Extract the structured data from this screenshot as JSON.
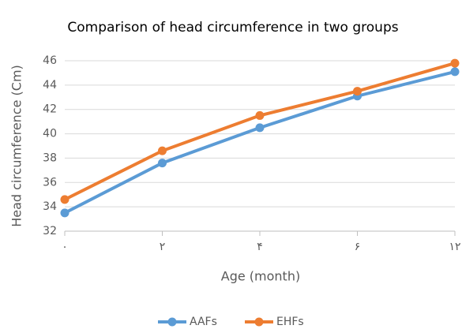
{
  "chart_data": {
    "type": "line",
    "title": "Comparison of head circumference in two groups",
    "x_label": "Age (month)",
    "y_label": "Head circumference (Cm)",
    "categories": [
      "۰",
      "۲",
      "۴",
      "۶",
      "۱۲"
    ],
    "series": [
      {
        "name": "AAFs",
        "color": "#5b9bd5",
        "values": [
          33.5,
          37.6,
          40.5,
          43.1,
          45.1
        ]
      },
      {
        "name": "EHFs",
        "color": "#ed7d31",
        "values": [
          34.6,
          38.6,
          41.5,
          43.5,
          45.8
        ]
      }
    ],
    "ylim": [
      32,
      46
    ],
    "yticks": [
      32,
      34,
      36,
      38,
      40,
      42,
      44,
      46
    ],
    "grid": true,
    "legend": "bottom"
  }
}
